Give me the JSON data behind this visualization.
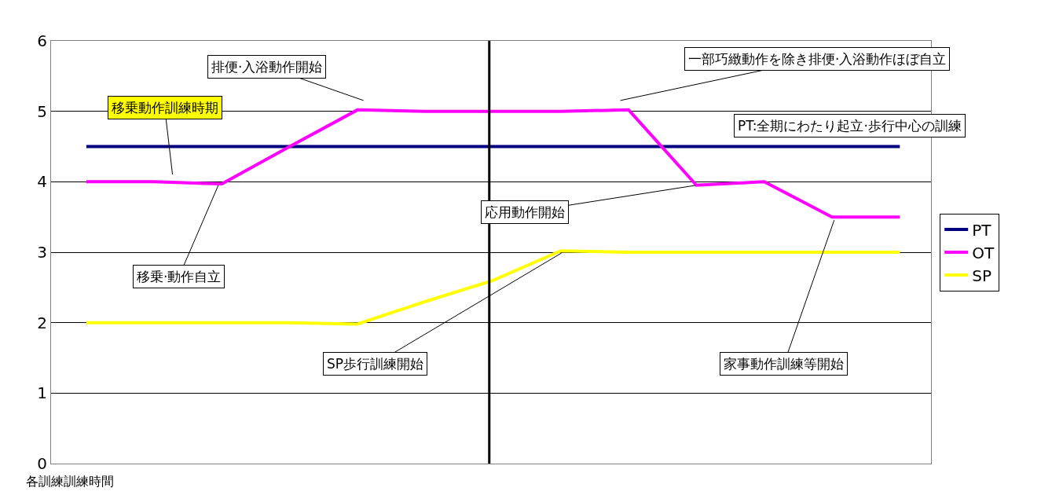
{
  "chart_data": {
    "type": "line",
    "xlabel": "各訓練訓練時間",
    "categories": [
      null,
      null,
      null,
      null,
      null,
      null,
      null,
      null,
      null,
      null,
      null,
      null,
      null
    ],
    "series": [
      {
        "name": "PT",
        "color": "#000080",
        "values": [
          4.5,
          4.5,
          4.5,
          4.5,
          4.5,
          4.5,
          4.5,
          4.5,
          4.5,
          4.5,
          4.5,
          4.5,
          4.5
        ]
      },
      {
        "name": "OT",
        "color": "#ff00ff",
        "values": [
          4.0,
          4.0,
          3.97,
          4.5,
          5.02,
          5.0,
          5.0,
          5.0,
          5.02,
          3.95,
          4.0,
          3.5,
          3.5
        ]
      },
      {
        "name": "SP",
        "color": "#ffff00",
        "values": [
          2.0,
          2.0,
          2.0,
          2.0,
          1.98,
          2.3,
          2.6,
          3.02,
          3.0,
          3.0,
          3.0,
          3.0,
          3.0
        ]
      }
    ],
    "ylim": [
      0,
      6
    ],
    "yticks": [
      0,
      1,
      2,
      3,
      4,
      5,
      6
    ],
    "tick_labels": "y",
    "grid": "y",
    "legend": "right",
    "marker": "none",
    "line_style": "solid",
    "annotations": [
      "移乗動作訓練時期",
      "排便·入浴動作開始",
      "一部巧緻動作を除き排便·入浴動作ほぼ自立",
      "PT:全期にわたり起立·歩行中心の訓練",
      "応用動作開始",
      "移乗·動作自立",
      "SP歩行訓練開始",
      "家事動作訓練等開始"
    ]
  }
}
